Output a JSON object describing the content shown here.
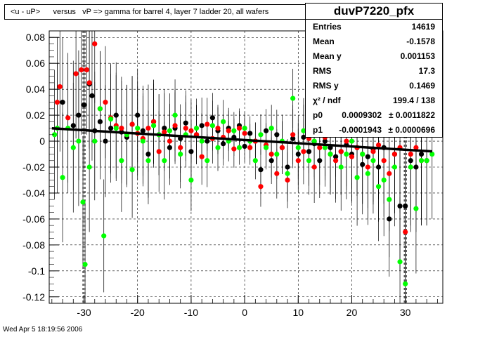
{
  "title": "<u - uP>      versus   vP => gamma for barrel 4, layer 7 ladder 20, all wafers",
  "date": "Wed Apr  5 18:19:56 2006",
  "stats": {
    "name": "duvP7220_pfx",
    "rows": [
      {
        "label": "Entries",
        "value": "14619"
      },
      {
        "label": "Mean",
        "value": "-0.1578"
      },
      {
        "label": "Mean y",
        "value": "0.001153"
      },
      {
        "label": "RMS",
        "value": "17.3"
      },
      {
        "label": "RMS y",
        "value": "0.1469"
      }
    ],
    "chi2_label": "χ² / ndf",
    "chi2_value": "199.4 / 138",
    "fit_params": [
      {
        "label": "p0",
        "value": "0.0009302",
        "error": "± 0.0011822"
      },
      {
        "label": "p1",
        "value": "-0.0001943",
        "error": "± 0.0000696"
      }
    ]
  },
  "colors": {
    "black": "#000000",
    "red": "#ff0000",
    "green": "#00ff00",
    "errorbar": "#000000",
    "grid": "#000000",
    "fit": "#000000"
  },
  "chart_data": {
    "type": "scatter",
    "xlim": [
      -36.5,
      37
    ],
    "ylim": [
      -0.125,
      0.085
    ],
    "xticks": [
      -30,
      -20,
      -10,
      0,
      10,
      20,
      30
    ],
    "yticks": [
      -0.12,
      -0.1,
      -0.08,
      -0.06,
      -0.04,
      -0.02,
      0,
      0.02,
      0.04,
      0.06,
      0.08
    ],
    "ytick_labels": [
      "-0.12",
      "-0.1",
      "-0.08",
      "-0.06",
      "-0.04",
      "-0.02",
      "0",
      "0.02",
      "0.04",
      "0.06",
      "0.08"
    ],
    "grid": true,
    "fit_line": {
      "p0": 0.0009302,
      "p1": -0.0001943,
      "x_range": [
        -36,
        35
      ]
    },
    "vlines": [
      -30,
      30
    ],
    "series": [
      {
        "color": "black",
        "points": [
          [
            -34,
            0.03
          ],
          [
            -32,
            0.012
          ],
          [
            -31,
            0.02
          ],
          [
            -30,
            0.028
          ],
          [
            -29,
            0.044
          ],
          [
            -28.5,
            0.035
          ],
          [
            -28,
            0.008
          ],
          [
            -27,
            0.015
          ],
          [
            -26,
            0.0
          ],
          [
            -25,
            0.01
          ],
          [
            -24,
            0.02
          ],
          [
            -23,
            0.007
          ],
          [
            -22,
            0.003
          ],
          [
            -21,
            0.013
          ],
          [
            -20,
            0.02
          ],
          [
            -19,
            0.008
          ],
          [
            -18,
            -0.01
          ],
          [
            -17,
            0.015
          ],
          [
            -16,
            0.005
          ],
          [
            -15,
            0.01
          ],
          [
            -14,
            -0.005
          ],
          [
            -13,
            0.01
          ],
          [
            -12,
            0.002
          ],
          [
            -11,
            0.014
          ],
          [
            -10,
            -0.008
          ],
          [
            -9,
            0.005
          ],
          [
            -8,
            0.012
          ],
          [
            -7,
            0.0
          ],
          [
            -6,
            0.018
          ],
          [
            -5,
            0.008
          ],
          [
            -4,
            -0.002
          ],
          [
            -3,
            0.01
          ],
          [
            -2,
            0.003
          ],
          [
            -1,
            0.012
          ],
          [
            0,
            -0.004
          ],
          [
            1,
            0.006
          ],
          [
            2,
            0.0
          ],
          [
            3,
            -0.022
          ],
          [
            4,
            0.008
          ],
          [
            5,
            -0.015
          ],
          [
            6,
            0.005
          ],
          [
            7,
            -0.005
          ],
          [
            8,
            -0.02
          ],
          [
            9,
            0.002
          ],
          [
            10,
            -0.01
          ],
          [
            11,
            0.003
          ],
          [
            12,
            -0.008
          ],
          [
            13,
            -0.002
          ],
          [
            14,
            -0.015
          ],
          [
            15,
            0.0
          ],
          [
            16,
            -0.005
          ],
          [
            17,
            -0.012
          ],
          [
            18,
            -0.008
          ],
          [
            19,
            -0.003
          ],
          [
            20,
            -0.01
          ],
          [
            21,
            -0.005
          ],
          [
            22,
            -0.018
          ],
          [
            23,
            -0.012
          ],
          [
            24,
            -0.006
          ],
          [
            25,
            -0.02
          ],
          [
            26,
            -0.005
          ],
          [
            27,
            -0.06
          ],
          [
            28,
            -0.01
          ],
          [
            29,
            -0.05
          ],
          [
            30,
            -0.05
          ],
          [
            31,
            -0.015
          ],
          [
            32,
            -0.02
          ],
          [
            33,
            -0.01
          ],
          [
            34,
            -0.015
          ]
        ]
      },
      {
        "color": "red",
        "points": [
          [
            -35,
            0.03
          ],
          [
            -34.5,
            0.042
          ],
          [
            -33,
            0.018
          ],
          [
            -31.5,
            0.052
          ],
          [
            -30.5,
            0.055
          ],
          [
            -29.5,
            0.055
          ],
          [
            -29,
            0.045
          ],
          [
            -28,
            0.075
          ],
          [
            -27,
            0.025
          ],
          [
            -26,
            0.03
          ],
          [
            -25,
            0.018
          ],
          [
            -24,
            0.012
          ],
          [
            -23,
            0.01
          ],
          [
            -22,
            0.005
          ],
          [
            -21,
            0.013
          ],
          [
            -20,
            0.006
          ],
          [
            -19,
            0.002
          ],
          [
            -18,
            0.01
          ],
          [
            -17,
            0.015
          ],
          [
            -16,
            -0.008
          ],
          [
            -15,
            0.007
          ],
          [
            -14,
            0.0
          ],
          [
            -13,
            0.012
          ],
          [
            -12,
            -0.005
          ],
          [
            -11,
            0.01
          ],
          [
            -10,
            0.008
          ],
          [
            -9,
            0.005
          ],
          [
            -8,
            -0.012
          ],
          [
            -7,
            0.013
          ],
          [
            -6,
            0.002
          ],
          [
            -5,
            0.01
          ],
          [
            -4,
            0.003
          ],
          [
            -3,
            0.008
          ],
          [
            -2,
            -0.006
          ],
          [
            -1,
            0.01
          ],
          [
            0,
            0.006
          ],
          [
            1,
            -0.005
          ],
          [
            2,
            0.0
          ],
          [
            3,
            -0.035
          ],
          [
            4,
            -0.003
          ],
          [
            5,
            -0.01
          ],
          [
            6,
            -0.025
          ],
          [
            7,
            -0.005
          ],
          [
            8,
            -0.03
          ],
          [
            9,
            0.005
          ],
          [
            10,
            -0.015
          ],
          [
            11,
            -0.008
          ],
          [
            12,
            0.002
          ],
          [
            13,
            -0.02
          ],
          [
            14,
            -0.005
          ],
          [
            15,
            0.003
          ],
          [
            16,
            -0.01
          ],
          [
            17,
            -0.015
          ],
          [
            18,
            -0.008
          ],
          [
            19,
            0.0
          ],
          [
            20,
            -0.012
          ],
          [
            21,
            -0.005
          ],
          [
            22,
            -0.01
          ],
          [
            23,
            -0.02
          ],
          [
            24,
            -0.008
          ],
          [
            25,
            -0.003
          ],
          [
            26,
            -0.015
          ],
          [
            27,
            -0.025
          ],
          [
            28,
            -0.01
          ],
          [
            29,
            -0.005
          ],
          [
            30,
            -0.07
          ],
          [
            31,
            -0.01
          ],
          [
            32,
            -0.005
          ],
          [
            33,
            -0.015
          ]
        ]
      },
      {
        "color": "green",
        "points": [
          [
            -35.5,
            0.005
          ],
          [
            -35,
            0.01
          ],
          [
            -34,
            -0.028
          ],
          [
            -33,
            0.01
          ],
          [
            -32,
            -0.005
          ],
          [
            -31,
            0.0
          ],
          [
            -30.2,
            -0.047
          ],
          [
            -29.8,
            -0.095
          ],
          [
            -29,
            -0.02
          ],
          [
            -28,
            0.0
          ],
          [
            -27,
            0.025
          ],
          [
            -26.3,
            -0.073
          ],
          [
            -25,
            0.017
          ],
          [
            -24,
            0.01
          ],
          [
            -23,
            -0.015
          ],
          [
            -22,
            0.005
          ],
          [
            -21,
            -0.022
          ],
          [
            -20,
            0.01
          ],
          [
            -19,
            0.0
          ],
          [
            -18,
            -0.015
          ],
          [
            -17,
            0.012
          ],
          [
            -16,
            0.005
          ],
          [
            -15,
            -0.015
          ],
          [
            -14,
            0.008
          ],
          [
            -13,
            0.02
          ],
          [
            -12,
            -0.01
          ],
          [
            -11,
            0.005
          ],
          [
            -10,
            -0.03
          ],
          [
            -9,
            0.01
          ],
          [
            -8,
            0.0
          ],
          [
            -7,
            -0.015
          ],
          [
            -6,
            0.012
          ],
          [
            -5,
            -0.005
          ],
          [
            -4,
            0.015
          ],
          [
            -3,
            0.0
          ],
          [
            -2,
            0.008
          ],
          [
            -1,
            -0.005
          ],
          [
            0,
            0.01
          ],
          [
            1,
            0.0
          ],
          [
            2,
            -0.015
          ],
          [
            3,
            0.005
          ],
          [
            4,
            -0.005
          ],
          [
            5,
            0.01
          ],
          [
            6,
            -0.01
          ],
          [
            7,
            0.0
          ],
          [
            8,
            -0.025
          ],
          [
            9,
            0.033
          ],
          [
            10,
            -0.005
          ],
          [
            11,
            0.008
          ],
          [
            12,
            -0.015
          ],
          [
            13,
            0.0
          ],
          [
            14,
            0.01
          ],
          [
            15,
            -0.005
          ],
          [
            16,
            -0.01
          ],
          [
            17,
            0.005
          ],
          [
            18,
            -0.02
          ],
          [
            19,
            -0.01
          ],
          [
            20,
            0.0
          ],
          [
            21,
            -0.028
          ],
          [
            22,
            -0.01
          ],
          [
            23,
            -0.025
          ],
          [
            24,
            -0.015
          ],
          [
            25,
            -0.035
          ],
          [
            26,
            -0.03
          ],
          [
            27,
            -0.045
          ],
          [
            28,
            -0.02
          ],
          [
            29,
            -0.093
          ],
          [
            30,
            -0.11
          ],
          [
            31,
            -0.02
          ],
          [
            32,
            -0.052
          ],
          [
            33,
            -0.015
          ],
          [
            34,
            -0.015
          ],
          [
            35,
            -0.01
          ]
        ]
      }
    ]
  }
}
